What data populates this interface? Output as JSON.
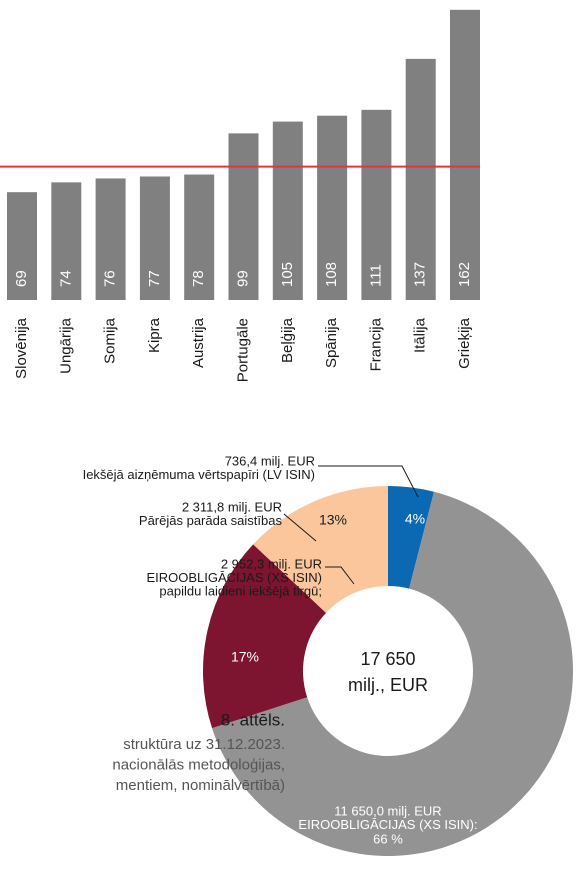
{
  "chart_data": [
    {
      "type": "bar",
      "categories": [
        "Slovēnija",
        "Ungārija",
        "Somija",
        "Kipra",
        "Austrija",
        "Portugāle",
        "Beļģija",
        "Spānija",
        "Francija",
        "Itālija",
        "Grieķija"
      ],
      "values": [
        69,
        74,
        76,
        77,
        78,
        99,
        105,
        108,
        111,
        137,
        162
      ],
      "color": "#808080",
      "ylim": [
        14,
        166
      ],
      "reference_line": {
        "value": 82,
        "color": "#e0373c"
      }
    },
    {
      "type": "donut",
      "values": [
        4,
        66,
        17,
        13
      ],
      "value_labels": [
        "4%",
        "66 %",
        "17%",
        "13%"
      ],
      "colors": [
        "#0b69b3",
        "#939393",
        "#7d1430",
        "#fbc69b"
      ],
      "amounts": [
        "736,4 milj. EUR",
        "11 650,0 milj. EUR",
        "2 952,3 milj. EUR",
        "2 311,8 milj. EUR"
      ],
      "categories": [
        [
          "Iekšējā aizņēmuma vērtspapīri (LV ISIN)"
        ],
        [
          "EIROOBLIGĀCIJAS (XS ISIN):"
        ],
        [
          "EIROOBLIGĀCIJAS (XS ISIN)",
          "papildu laidieni iekšējā tirgū;"
        ],
        [
          "Pārējās parāda saistības"
        ]
      ],
      "center_label": [
        "17 650",
        "milj., EUR"
      ],
      "title": "8. attēls.",
      "subtitle": [
        "struktūra uz 31.12.2023.",
        "nacionālās metodoloģijas,",
        "mentiem, nominālvērtībā)"
      ]
    }
  ]
}
